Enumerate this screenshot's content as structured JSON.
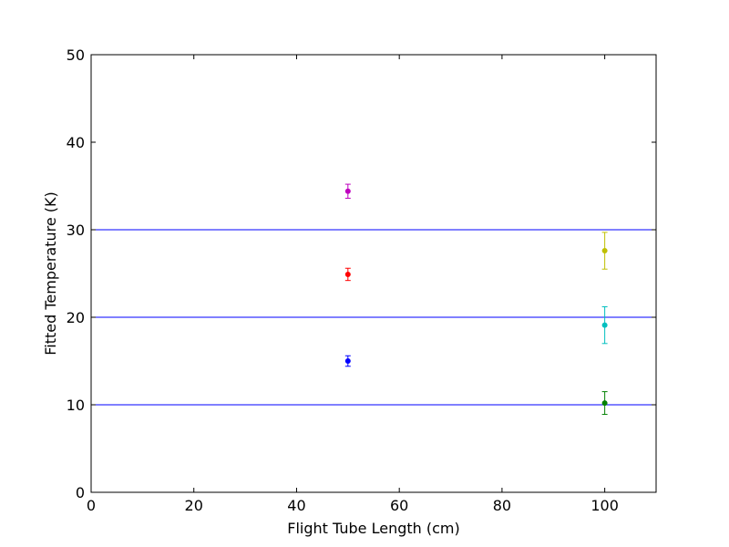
{
  "chart_data": {
    "type": "scatter",
    "title": "",
    "xlabel": "Flight Tube Length (cm)",
    "ylabel": "Fitted Temperature (K)",
    "xlim": [
      0,
      110
    ],
    "ylim": [
      0,
      50
    ],
    "xticks": [
      0,
      20,
      40,
      60,
      80,
      100
    ],
    "yticks": [
      0,
      10,
      20,
      30,
      40,
      50
    ],
    "grid": false,
    "legend": "none",
    "reference_lines": [
      {
        "y": 10,
        "color": "#0000ff"
      },
      {
        "y": 20,
        "color": "#0000ff"
      },
      {
        "y": 30,
        "color": "#0000ff"
      }
    ],
    "series": [
      {
        "color": "#0000ff",
        "points": [
          {
            "x": 50,
            "y": 15.0,
            "yerr": 0.6
          }
        ]
      },
      {
        "color": "#ff0000",
        "points": [
          {
            "x": 50,
            "y": 24.9,
            "yerr": 0.7
          }
        ]
      },
      {
        "color": "#bf00bf",
        "points": [
          {
            "x": 50,
            "y": 34.4,
            "yerr": 0.8
          }
        ]
      },
      {
        "color": "#008000",
        "points": [
          {
            "x": 100,
            "y": 10.2,
            "yerr": 1.3
          }
        ]
      },
      {
        "color": "#00bfbf",
        "points": [
          {
            "x": 100,
            "y": 19.1,
            "yerr": 2.1
          }
        ]
      },
      {
        "color": "#bfbf00",
        "points": [
          {
            "x": 100,
            "y": 27.6,
            "yerr": 2.1
          }
        ]
      }
    ]
  }
}
